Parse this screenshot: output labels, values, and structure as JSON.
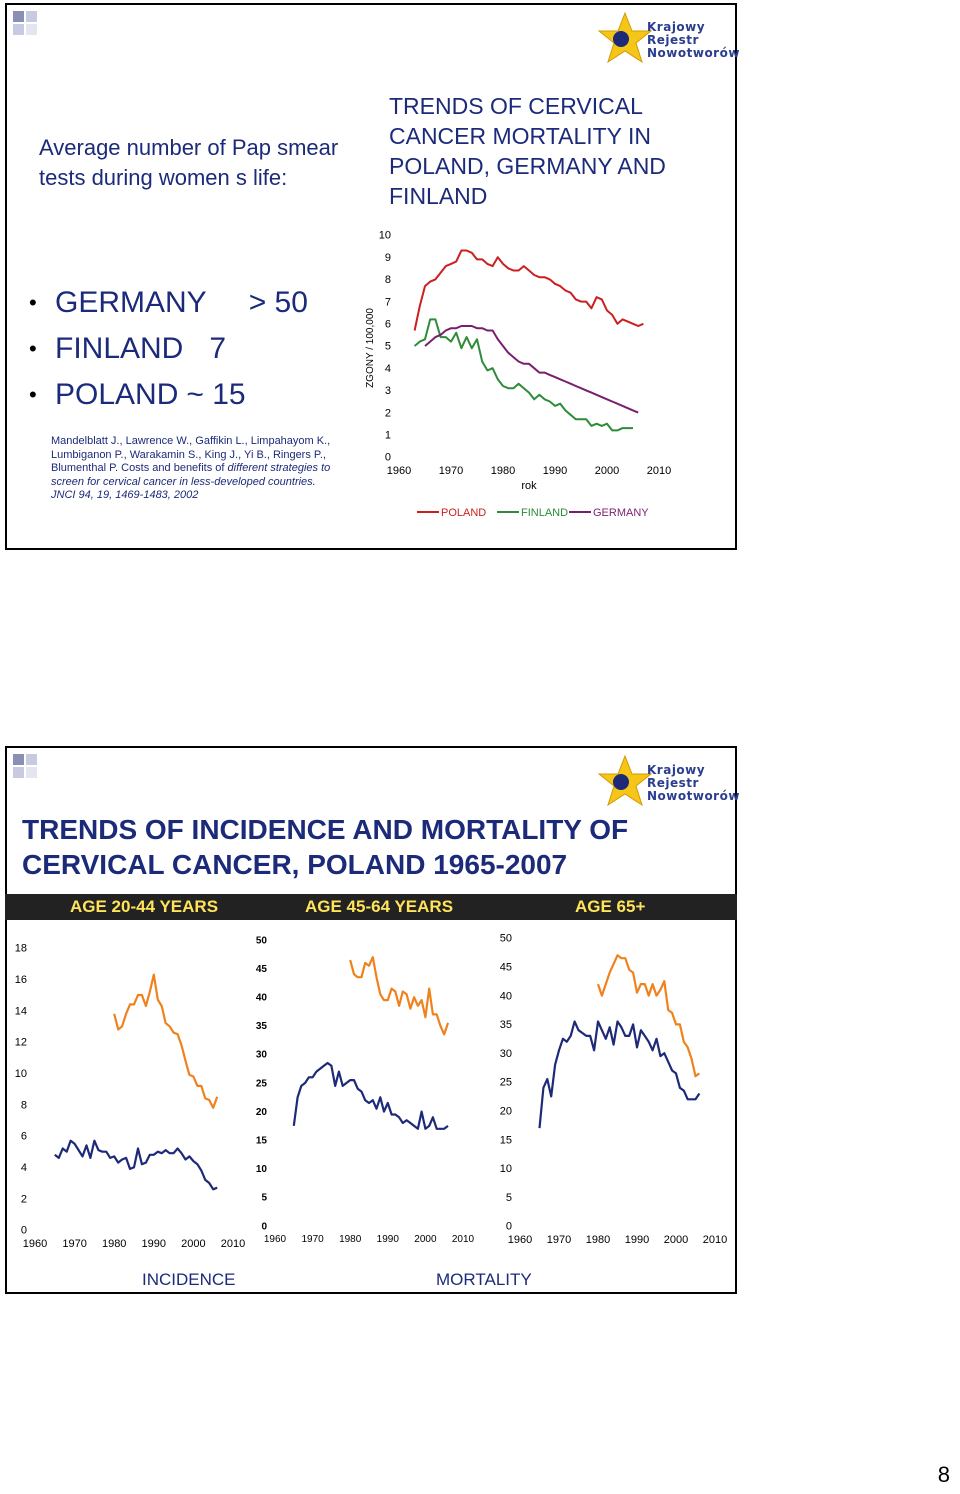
{
  "colors": {
    "poland": "#cc1f1f",
    "finland": "#2e8b3a",
    "germany": "#7a1f6e",
    "incidence": "#f0821e",
    "mortality": "#1c2a78",
    "title": "#1c2a7a",
    "band_text": "#ffe45a"
  },
  "logo": {
    "lines": [
      "Krajowy",
      "Rejestr",
      "Nowotworów"
    ]
  },
  "slide1": {
    "left_title": "Average number of Pap smear tests during women s life:",
    "bullets": [
      {
        "country": "GERMANY",
        "value": "> 50"
      },
      {
        "country": "FINLAND",
        "value": "7"
      },
      {
        "country": "POLAND",
        "value": "~ 15"
      }
    ],
    "reference": "Mandelblatt J., Lawrence W., Gaffikin L., Limpahayom K., Lumbiganon P., Warakamin S., King J., Yi B., Ringers P., Blumenthal P. Costs and benefits of",
    "reference_italic": "different strategies to screen for cervical cancer in less-developed countries.",
    "reference_tail": "JNCI 94, 19, 1469-1483, 2002",
    "right_title": "TRENDS OF CERVICAL CANCER MORTALITY IN POLAND, GERMANY AND FINLAND"
  },
  "chart_data": [
    {
      "type": "line",
      "title": "TRENDS OF CERVICAL CANCER MORTALITY IN POLAND, GERMANY AND FINLAND",
      "xlabel": "rok",
      "ylabel": "ZGONY / 100,000",
      "xlim": [
        1960,
        2010
      ],
      "ylim": [
        0,
        10
      ],
      "xticks": [
        1960,
        1970,
        1980,
        1990,
        2000,
        2010
      ],
      "yticks": [
        0,
        1,
        2,
        3,
        4,
        5,
        6,
        7,
        8,
        9,
        10
      ],
      "grid": false,
      "legend": "bottom",
      "series": [
        {
          "name": "POLAND",
          "color": "#cc1f1f",
          "x": [
            1963,
            1964,
            1965,
            1966,
            1967,
            1968,
            1969,
            1970,
            1971,
            1972,
            1973,
            1974,
            1975,
            1976,
            1977,
            1978,
            1979,
            1980,
            1981,
            1982,
            1983,
            1984,
            1985,
            1986,
            1987,
            1988,
            1989,
            1990,
            1991,
            1992,
            1993,
            1994,
            1995,
            1996,
            1997,
            1998,
            1999,
            2000,
            2001,
            2002,
            2003,
            2004,
            2005,
            2006,
            2007
          ],
          "y": [
            5.7,
            6.8,
            7.7,
            7.9,
            8.0,
            8.3,
            8.6,
            8.7,
            8.8,
            9.3,
            9.3,
            9.2,
            8.9,
            8.9,
            8.7,
            8.6,
            9.0,
            8.7,
            8.5,
            8.4,
            8.4,
            8.6,
            8.4,
            8.2,
            8.1,
            8.1,
            8.0,
            7.8,
            7.7,
            7.5,
            7.4,
            7.1,
            7.0,
            7.0,
            6.7,
            7.2,
            7.1,
            6.6,
            6.4,
            6.0,
            6.2,
            6.1,
            6.0,
            5.9,
            6.0
          ]
        },
        {
          "name": "FINLAND",
          "color": "#2e8b3a",
          "x": [
            1963,
            1964,
            1965,
            1966,
            1967,
            1968,
            1969,
            1970,
            1971,
            1972,
            1973,
            1974,
            1975,
            1976,
            1977,
            1978,
            1979,
            1980,
            1981,
            1982,
            1983,
            1984,
            1985,
            1986,
            1987,
            1988,
            1989,
            1990,
            1991,
            1992,
            1993,
            1994,
            1995,
            1996,
            1997,
            1998,
            1999,
            2000,
            2001,
            2002,
            2003,
            2004,
            2005
          ],
          "y": [
            5.0,
            5.2,
            5.3,
            6.2,
            6.2,
            5.4,
            5.4,
            5.2,
            5.6,
            4.9,
            5.4,
            4.9,
            5.3,
            4.3,
            3.9,
            4.0,
            3.5,
            3.2,
            3.1,
            3.1,
            3.3,
            3.1,
            2.9,
            2.6,
            2.8,
            2.6,
            2.5,
            2.3,
            2.4,
            2.1,
            1.9,
            1.7,
            1.7,
            1.7,
            1.4,
            1.5,
            1.4,
            1.5,
            1.2,
            1.2,
            1.3,
            1.3,
            1.3
          ]
        },
        {
          "name": "GERMANY",
          "color": "#7a1f6e",
          "x": [
            1965,
            1966,
            1967,
            1968,
            1969,
            1970,
            1971,
            1972,
            1973,
            1974,
            1975,
            1976,
            1977,
            1978,
            1979,
            1980,
            1981,
            1982,
            1983,
            1984,
            1985,
            1986,
            1987,
            1988,
            1989,
            1990,
            1991,
            1992,
            1993,
            1994,
            1995,
            1996,
            1997,
            1998,
            1999,
            2000,
            2001,
            2002,
            2003,
            2004,
            2005,
            2006
          ],
          "y": [
            5.0,
            5.2,
            5.4,
            5.5,
            5.7,
            5.8,
            5.8,
            5.9,
            5.9,
            5.9,
            5.8,
            5.8,
            5.7,
            5.7,
            5.3,
            5.0,
            4.7,
            4.5,
            4.3,
            4.2,
            4.2,
            4.0,
            3.8,
            3.8,
            3.7,
            3.6,
            3.5,
            3.4,
            3.3,
            3.2,
            3.1,
            3.0,
            2.9,
            2.8,
            2.7,
            2.6,
            2.5,
            2.4,
            2.3,
            2.2,
            2.1,
            2.0
          ]
        }
      ]
    },
    {
      "type": "line",
      "title": "AGE 20-44 YEARS",
      "xlabel": "",
      "ylabel": "",
      "xlim": [
        1960,
        2010
      ],
      "ylim": [
        0,
        18
      ],
      "xticks": [
        1960,
        1970,
        1980,
        1990,
        2000,
        2010
      ],
      "yticks": [
        0,
        2,
        4,
        6,
        8,
        10,
        12,
        14,
        16,
        18
      ],
      "grid": false,
      "series": [
        {
          "name": "INCIDENCE",
          "color": "#f0821e",
          "x": [
            1980,
            1981,
            1982,
            1983,
            1984,
            1985,
            1986,
            1987,
            1988,
            1989,
            1990,
            1991,
            1992,
            1993,
            1994,
            1995,
            1996,
            1997,
            1998,
            1999,
            2000,
            2001,
            2002,
            2003,
            2004,
            2005,
            2006
          ],
          "y": [
            13.8,
            12.8,
            13.0,
            13.8,
            14.4,
            14.4,
            15.0,
            15.0,
            14.3,
            15.2,
            16.3,
            14.7,
            14.3,
            13.2,
            13.0,
            12.6,
            12.5,
            11.8,
            10.8,
            9.9,
            9.8,
            9.2,
            9.2,
            8.4,
            8.3,
            7.8,
            8.5
          ]
        },
        {
          "name": "MORTALITY",
          "color": "#1c2a78",
          "x": [
            1965,
            1966,
            1967,
            1968,
            1969,
            1970,
            1971,
            1972,
            1973,
            1974,
            1975,
            1976,
            1977,
            1978,
            1979,
            1980,
            1981,
            1982,
            1983,
            1984,
            1985,
            1986,
            1987,
            1988,
            1989,
            1990,
            1991,
            1992,
            1993,
            1994,
            1995,
            1996,
            1997,
            1998,
            1999,
            2000,
            2001,
            2002,
            2003,
            2004,
            2005,
            2006
          ],
          "y": [
            4.8,
            4.6,
            5.2,
            5.0,
            5.7,
            5.5,
            5.1,
            4.7,
            5.4,
            4.6,
            5.7,
            5.1,
            5.0,
            5.0,
            4.6,
            4.7,
            4.3,
            4.5,
            4.6,
            3.9,
            4.0,
            5.2,
            4.2,
            4.3,
            4.8,
            4.8,
            5.0,
            4.9,
            5.1,
            4.9,
            4.9,
            5.2,
            4.9,
            4.5,
            4.7,
            4.4,
            4.2,
            3.8,
            3.2,
            3.0,
            2.6,
            2.7
          ]
        }
      ]
    },
    {
      "type": "line",
      "title": "AGE 45-64 YEARS",
      "xlabel": "",
      "ylabel": "",
      "xlim": [
        1960,
        2010
      ],
      "ylim": [
        0,
        50
      ],
      "xticks": [
        1960,
        1970,
        1980,
        1990,
        2000,
        2010
      ],
      "yticks": [
        0,
        5,
        10,
        15,
        20,
        25,
        30,
        35,
        40,
        45,
        50
      ],
      "grid": false,
      "series": [
        {
          "name": "INCIDENCE",
          "color": "#f0821e",
          "x": [
            1980,
            1981,
            1982,
            1983,
            1984,
            1985,
            1986,
            1987,
            1988,
            1989,
            1990,
            1991,
            1992,
            1993,
            1994,
            1995,
            1996,
            1997,
            1998,
            1999,
            2000,
            2001,
            2002,
            2003,
            2004,
            2005,
            2006
          ],
          "y": [
            46.5,
            44.0,
            43.5,
            43.5,
            46.0,
            45.5,
            47.0,
            43.5,
            40.5,
            39.5,
            39.5,
            41.5,
            41.0,
            38.5,
            41.0,
            40.5,
            38.0,
            40.0,
            38.5,
            39.5,
            36.5,
            41.5,
            37.0,
            37.0,
            35.0,
            33.5,
            35.5
          ]
        },
        {
          "name": "MORTALITY",
          "color": "#1c2a78",
          "x": [
            1965,
            1966,
            1967,
            1968,
            1969,
            1970,
            1971,
            1972,
            1973,
            1974,
            1975,
            1976,
            1977,
            1978,
            1979,
            1980,
            1981,
            1982,
            1983,
            1984,
            1985,
            1986,
            1987,
            1988,
            1989,
            1990,
            1991,
            1992,
            1993,
            1994,
            1995,
            1996,
            1997,
            1998,
            1999,
            2000,
            2001,
            2002,
            2003,
            2004,
            2005,
            2006
          ],
          "y": [
            17.5,
            22.5,
            24.5,
            25.0,
            26.0,
            26.0,
            27.0,
            27.5,
            28.0,
            28.5,
            28.0,
            24.5,
            27.0,
            24.5,
            25.0,
            25.5,
            25.5,
            24.0,
            23.5,
            22.0,
            21.5,
            22.0,
            20.5,
            22.5,
            20.0,
            21.5,
            19.5,
            19.5,
            19.0,
            18.0,
            18.5,
            18.0,
            17.5,
            17.0,
            20.0,
            17.0,
            17.5,
            19.0,
            17.0,
            17.0,
            17.0,
            17.5
          ]
        }
      ]
    },
    {
      "type": "line",
      "title": "AGE 65+",
      "xlabel": "",
      "ylabel": "",
      "xlim": [
        1960,
        2010
      ],
      "ylim": [
        0,
        50
      ],
      "xticks": [
        1960,
        1970,
        1980,
        1990,
        2000,
        2010
      ],
      "yticks": [
        0,
        5,
        10,
        15,
        20,
        25,
        30,
        35,
        40,
        45,
        50
      ],
      "grid": false,
      "series": [
        {
          "name": "INCIDENCE",
          "color": "#f0821e",
          "x": [
            1980,
            1981,
            1982,
            1983,
            1984,
            1985,
            1986,
            1987,
            1988,
            1989,
            1990,
            1991,
            1992,
            1993,
            1994,
            1995,
            1996,
            1997,
            1998,
            1999,
            2000,
            2001,
            2002,
            2003,
            2004,
            2005,
            2006
          ],
          "y": [
            42.0,
            40.0,
            42.0,
            44.0,
            45.5,
            47.0,
            46.5,
            46.5,
            44.5,
            44.0,
            40.5,
            42.0,
            42.0,
            40.0,
            42.0,
            40.0,
            41.0,
            42.5,
            37.5,
            37.0,
            35.0,
            35.0,
            32.0,
            31.0,
            29.0,
            26.0,
            26.5
          ]
        },
        {
          "name": "MORTALITY",
          "color": "#1c2a78",
          "x": [
            1965,
            1966,
            1967,
            1968,
            1969,
            1970,
            1971,
            1972,
            1973,
            1974,
            1975,
            1976,
            1977,
            1978,
            1979,
            1980,
            1981,
            1982,
            1983,
            1984,
            1985,
            1986,
            1987,
            1988,
            1989,
            1990,
            1991,
            1992,
            1993,
            1994,
            1995,
            1996,
            1997,
            1998,
            1999,
            2000,
            2001,
            2002,
            2003,
            2004,
            2005,
            2006
          ],
          "y": [
            17.0,
            24.0,
            25.5,
            22.5,
            28.0,
            30.5,
            32.5,
            32.0,
            33.0,
            35.5,
            34.0,
            33.5,
            33.0,
            33.0,
            30.5,
            35.5,
            34.0,
            32.5,
            34.5,
            31.5,
            35.5,
            34.5,
            33.0,
            33.0,
            35.0,
            31.0,
            34.0,
            33.0,
            32.0,
            30.5,
            32.5,
            29.5,
            30.0,
            28.5,
            27.0,
            26.5,
            24.0,
            23.5,
            22.0,
            22.0,
            22.0,
            23.0
          ]
        }
      ]
    }
  ],
  "slide2": {
    "title": "TRENDS OF INCIDENCE AND MORTALITY OF CERVICAL CANCER, POLAND 1965-2007",
    "age_groups": [
      "AGE 20-44 YEARS",
      "AGE 45-64 YEARS",
      "AGE 65+"
    ],
    "incidence_label": "INCIDENCE",
    "mortality_label": "MORTALITY"
  },
  "page_number": "8"
}
